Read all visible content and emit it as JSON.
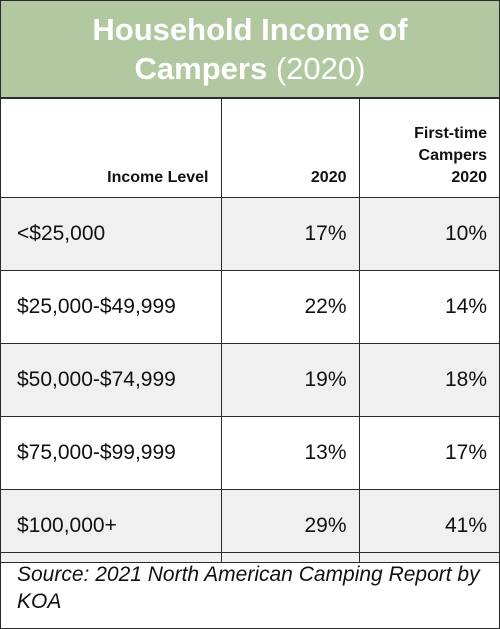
{
  "chart_data": {
    "type": "table",
    "title": "Household Income of Campers",
    "title_year": "(2020)",
    "columns": [
      "Income Level",
      "2020",
      "First-time Campers 2020"
    ],
    "rows": [
      {
        "income_level": "<$25,000",
        "y2020": "17%",
        "first_time_2020": "10%"
      },
      {
        "income_level": "$25,000-$49,999",
        "y2020": "22%",
        "first_time_2020": "14%"
      },
      {
        "income_level": "$50,000-$74,999",
        "y2020": "19%",
        "first_time_2020": "18%"
      },
      {
        "income_level": "$75,000-$99,999",
        "y2020": "13%",
        "first_time_2020": "17%"
      },
      {
        "income_level": "$100,000+",
        "y2020": "29%",
        "first_time_2020": "41%"
      }
    ],
    "source": "Source: 2021 North American Camping Report by KOA"
  },
  "colors": {
    "header_bg": "#b2c8a1",
    "row_shade": "#f0f0f0"
  }
}
